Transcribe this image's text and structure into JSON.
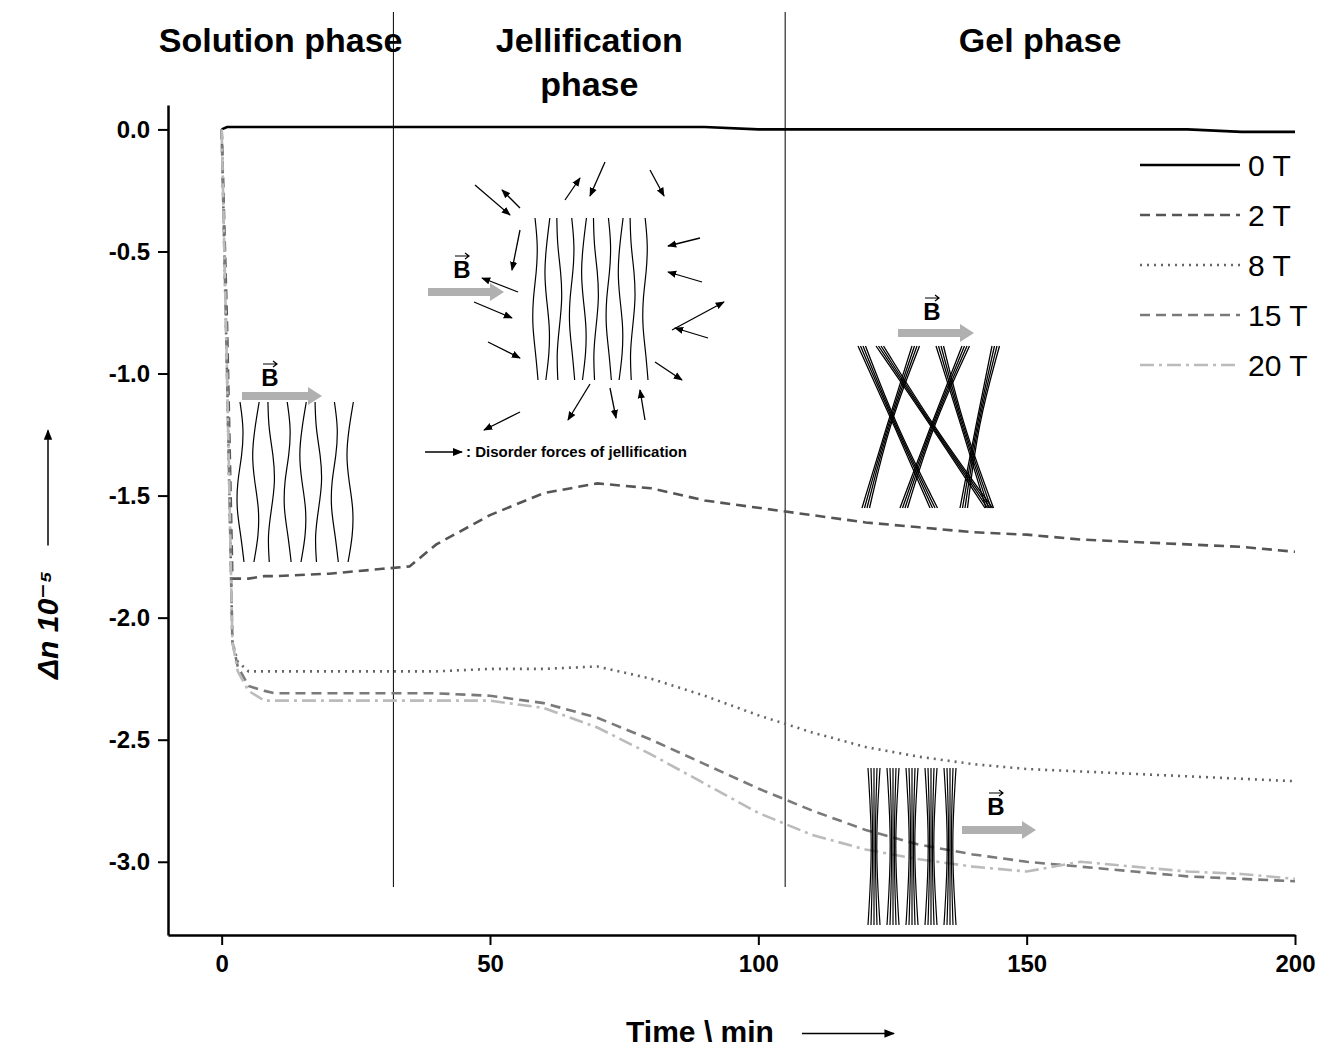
{
  "chart_data": {
    "type": "line",
    "xlabel": "Time \\ min",
    "ylabel": "Δn 10⁻⁵",
    "phases": [
      "Solution phase",
      "Jellification phase",
      "Gel phase"
    ],
    "phase_boundaries": [
      32,
      105
    ],
    "annotations": [
      "B",
      ": Disorder forces of jellification"
    ],
    "x": [
      0,
      1,
      2,
      3,
      5,
      8,
      10,
      20,
      30,
      35,
      40,
      50,
      60,
      70,
      80,
      90,
      100,
      110,
      120,
      130,
      140,
      150,
      160,
      170,
      180,
      190,
      200
    ],
    "series": [
      {
        "name": "0 T",
        "color": "#000000",
        "line_style": "solid",
        "values": [
          0,
          0.01,
          0.01,
          0.01,
          0.01,
          0.01,
          0.01,
          0.01,
          0.01,
          0.01,
          0.01,
          0.01,
          0.01,
          0.01,
          0.01,
          0.01,
          0,
          0,
          0,
          0,
          0,
          0,
          0,
          0,
          0,
          -0.01,
          -0.01
        ]
      },
      {
        "name": "2 T",
        "color": "#555555",
        "line_style": "dashed",
        "values": [
          0,
          -0.8,
          -1.84,
          -1.84,
          -1.84,
          -1.83,
          -1.83,
          -1.82,
          -1.8,
          -1.79,
          -1.7,
          -1.58,
          -1.49,
          -1.45,
          -1.47,
          -1.52,
          -1.55,
          -1.58,
          -1.61,
          -1.63,
          -1.65,
          -1.66,
          -1.68,
          -1.69,
          -1.7,
          -1.71,
          -1.73
        ]
      },
      {
        "name": "8 T",
        "color": "#666666",
        "line_style": "dotted",
        "values": [
          0,
          -1.0,
          -2.1,
          -2.18,
          -2.22,
          -2.22,
          -2.22,
          -2.22,
          -2.22,
          -2.22,
          -2.22,
          -2.21,
          -2.21,
          -2.2,
          -2.25,
          -2.32,
          -2.4,
          -2.47,
          -2.53,
          -2.57,
          -2.6,
          -2.62,
          -2.63,
          -2.64,
          -2.65,
          -2.66,
          -2.67
        ]
      },
      {
        "name": "15 T",
        "color": "#7a7a7a",
        "line_style": "dashed",
        "values": [
          0,
          -1.0,
          -2.1,
          -2.2,
          -2.28,
          -2.3,
          -2.31,
          -2.31,
          -2.31,
          -2.31,
          -2.31,
          -2.32,
          -2.35,
          -2.41,
          -2.5,
          -2.6,
          -2.7,
          -2.79,
          -2.87,
          -2.93,
          -2.97,
          -3.0,
          -3.02,
          -3.04,
          -3.06,
          -3.07,
          -3.08
        ]
      },
      {
        "name": "20 T",
        "color": "#bbbbbb",
        "line_style": "dashdot",
        "values": [
          0,
          -1.0,
          -2.1,
          -2.22,
          -2.3,
          -2.34,
          -2.34,
          -2.34,
          -2.34,
          -2.34,
          -2.34,
          -2.34,
          -2.37,
          -2.45,
          -2.56,
          -2.68,
          -2.8,
          -2.89,
          -2.95,
          -2.99,
          -3.02,
          -3.04,
          -3.0,
          -3.02,
          -3.04,
          -3.05,
          -3.07
        ]
      }
    ],
    "xlim": [
      -10,
      200
    ],
    "xticks": [
      0,
      50,
      100,
      150,
      200
    ],
    "ylim": [
      -3.3,
      0.1
    ],
    "yticks": [
      {
        "value": -3,
        "label": "-3.0"
      },
      -2.5,
      {
        "value": -2,
        "label": "-2.0"
      },
      -1.5,
      {
        "value": -1,
        "label": "-1.0"
      },
      -0.5,
      {
        "value": 0,
        "label": "0.0"
      }
    ],
    "grid": false,
    "legend": "top-right"
  }
}
